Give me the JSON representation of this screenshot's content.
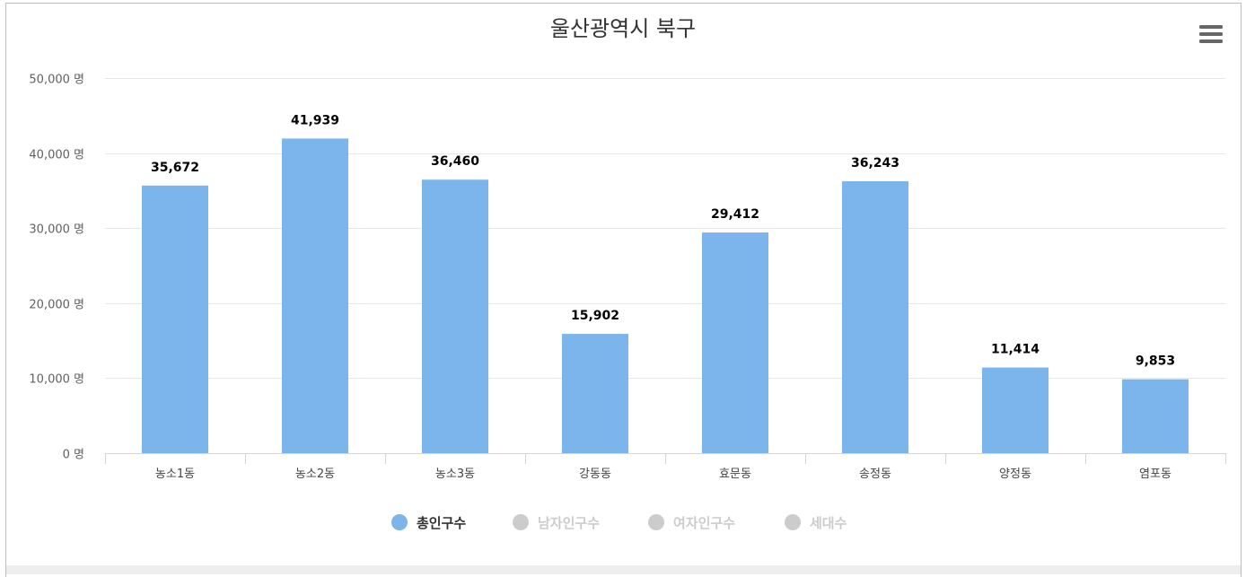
{
  "chart_data": {
    "type": "bar",
    "title": "울산광역시 북구",
    "categories": [
      "농소1동",
      "농소2동",
      "농소3동",
      "강동동",
      "효문동",
      "송정동",
      "양정동",
      "염포동"
    ],
    "series": [
      {
        "name": "총인구수",
        "values": [
          35672,
          41939,
          36460,
          15902,
          29412,
          36243,
          11414,
          9853
        ],
        "color": "#7cb5ec",
        "visible": true
      }
    ],
    "data_labels": [
      "35,672",
      "41,939",
      "36,460",
      "15,902",
      "29,412",
      "36,243",
      "11,414",
      "9,853"
    ],
    "ylim": [
      0,
      50000
    ],
    "yticks": [
      0,
      10000,
      20000,
      30000,
      40000,
      50000
    ],
    "ytick_labels": [
      "0 명",
      "10,000 명",
      "20,000 명",
      "30,000 명",
      "40,000 명",
      "50,000 명"
    ],
    "grid": true,
    "legend_position": "bottom-center",
    "legend": [
      {
        "label": "총인구수",
        "active": true
      },
      {
        "label": "남자인구수",
        "active": false
      },
      {
        "label": "여자인구수",
        "active": false
      },
      {
        "label": "세대수",
        "active": false
      }
    ]
  },
  "colors": {
    "bar": "#7cb5ec",
    "legend_inactive_marker": "#cccccc",
    "legend_inactive_text": "#cccccc",
    "legend_active_text": "#333333",
    "grid": "#e6e6e6",
    "axis": "#ccd6eb"
  },
  "menu_icon": "hamburger-menu-icon"
}
